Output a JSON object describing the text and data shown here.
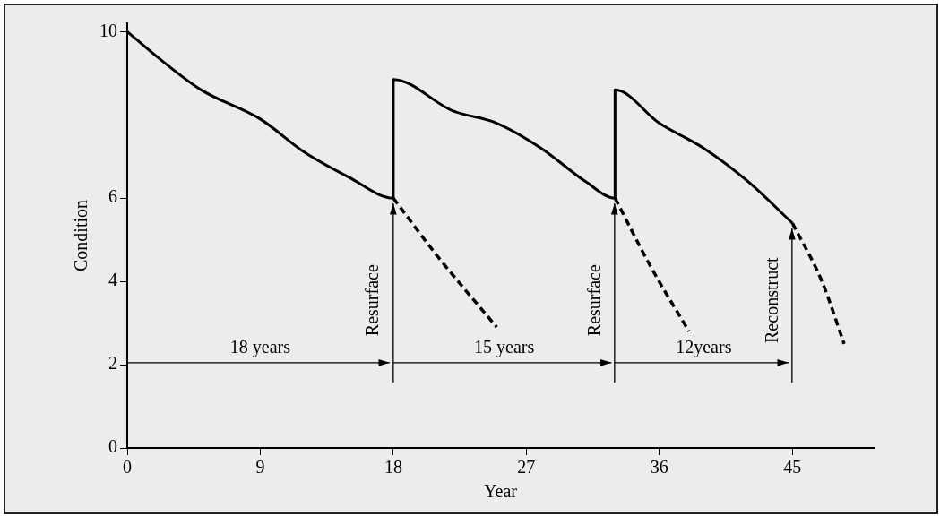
{
  "chart_data": {
    "type": "line",
    "xlabel": "Year",
    "ylabel": "Condition",
    "xlim": [
      0,
      50.5
    ],
    "xticks": [
      0,
      9,
      18,
      27,
      36,
      45
    ],
    "ylim": [
      0,
      10.2
    ],
    "yticks": [
      0,
      2,
      4,
      6,
      10
    ],
    "grid": false,
    "legend": false,
    "marker": "none",
    "series": [
      {
        "color": "#000000",
        "line_style": "solid",
        "x": [
          0,
          2,
          5,
          9,
          12,
          15,
          18,
          18,
          22,
          25,
          28,
          31,
          33,
          33,
          36,
          39,
          42,
          45
        ],
        "values": [
          10,
          9.4,
          8.6,
          7.9,
          7.1,
          6.5,
          6,
          8.85,
          8.1,
          7.8,
          7.2,
          6.4,
          6,
          8.6,
          7.8,
          7.2,
          6.4,
          5.4
        ]
      },
      {
        "color": "#000000",
        "line_style": "dashed",
        "x": [
          18,
          21,
          25
        ],
        "values": [
          6,
          4.6,
          2.9
        ]
      },
      {
        "color": "#000000",
        "line_style": "dashed",
        "x": [
          33,
          35.5,
          38
        ],
        "values": [
          6,
          4.3,
          2.8
        ]
      },
      {
        "color": "#000000",
        "line_style": "dashed",
        "x": [
          45,
          47,
          48.5
        ],
        "values": [
          5.4,
          4,
          2.5
        ]
      }
    ],
    "ref_lines": [
      {
        "axis": "x",
        "value": 18,
        "label": "Resurface"
      },
      {
        "axis": "x",
        "value": 33,
        "label": "Resurface"
      },
      {
        "axis": "x",
        "value": 45,
        "label": "Reconstruct"
      }
    ],
    "annotations": [
      "18 years",
      "15 years",
      "12years"
    ]
  }
}
